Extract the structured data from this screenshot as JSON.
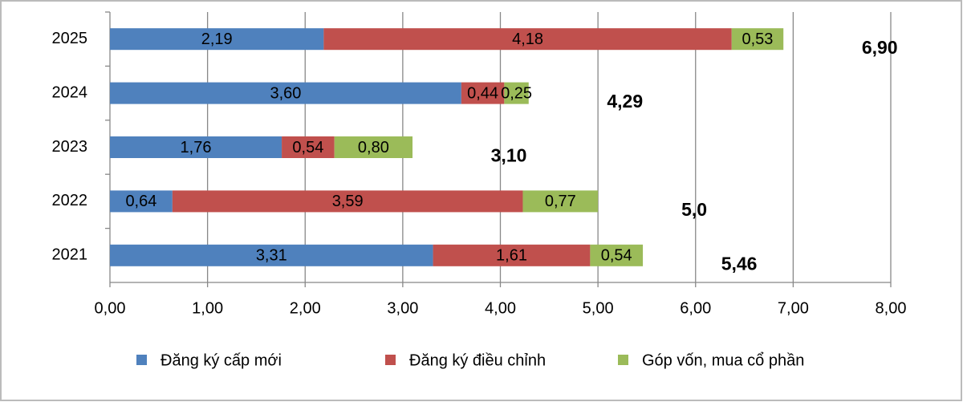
{
  "chart_data": {
    "type": "stacked-barh",
    "categories": [
      "2025",
      "2024",
      "2023",
      "2022",
      "2021"
    ],
    "series": [
      {
        "name": "Đăng ký cấp mới",
        "color": "#4f81bd",
        "values": [
          2.19,
          3.6,
          1.76,
          0.64,
          3.31
        ],
        "value_labels": [
          "2,19",
          "3,60",
          "1,76",
          "0,64",
          "3,31"
        ]
      },
      {
        "name": "Đăng ký điều chỉnh",
        "color": "#c0504d",
        "values": [
          4.18,
          0.44,
          0.54,
          3.59,
          1.61
        ],
        "value_labels": [
          "4,18",
          "0,44",
          "0,54",
          "3,59",
          "1,61"
        ]
      },
      {
        "name": "Góp vốn, mua cổ phần",
        "color": "#9bbb59",
        "values": [
          0.53,
          0.25,
          0.8,
          0.77,
          0.54
        ],
        "value_labels": [
          "0,53",
          "0,25",
          "0,80",
          "0,77",
          "0,54"
        ]
      }
    ],
    "totals": {
      "values": [
        6.9,
        4.29,
        3.1,
        5.0,
        5.46
      ],
      "value_labels": [
        "6,90",
        "4,29",
        "3,10",
        "5,0",
        "5,46"
      ]
    },
    "xlim": [
      0,
      8
    ],
    "xticks": [
      {
        "value": 0,
        "label": "0,00"
      },
      {
        "value": 1,
        "label": "1,00"
      },
      {
        "value": 2,
        "label": "2,00"
      },
      {
        "value": 3,
        "label": "3,00"
      },
      {
        "value": 4,
        "label": "4,00"
      },
      {
        "value": 5,
        "label": "5,00"
      },
      {
        "value": 6,
        "label": "6,00"
      },
      {
        "value": 7,
        "label": "7,00"
      },
      {
        "value": 8,
        "label": "8,00"
      }
    ],
    "grid": true,
    "legend": "bottom"
  }
}
